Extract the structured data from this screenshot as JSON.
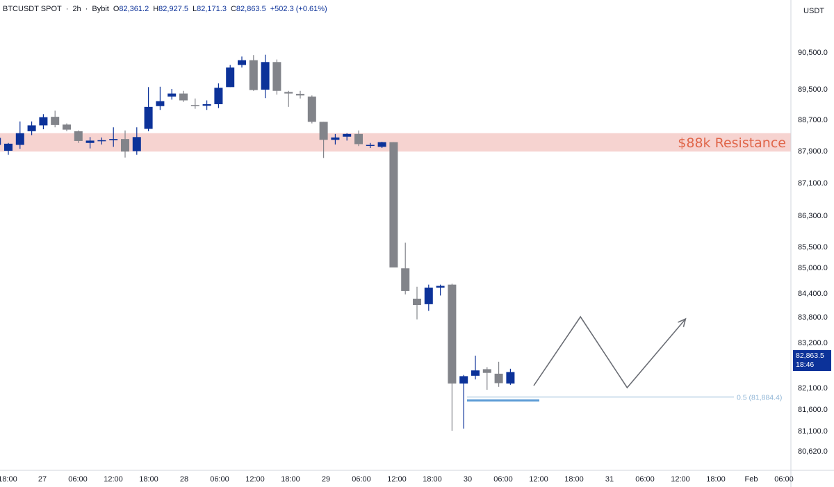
{
  "header": {
    "symbol": "BTCUSDT SPOT",
    "interval": "2h",
    "exchange": "Bybit",
    "open_label": "O",
    "open": "82,361.2",
    "high_label": "H",
    "high": "82,927.5",
    "low_label": "L",
    "low": "82,171.3",
    "close_label": "C",
    "close": "82,863.5",
    "change": "+502.3 (+0.61%)"
  },
  "currency": "USDT",
  "last_price": {
    "value": "82,863.5",
    "countdown": "18:46"
  },
  "chart_data": {
    "type": "candlestick",
    "title": "BTCUSDT SPOT · 2h · Bybit",
    "y_ticks": [
      90500,
      89500,
      88700,
      87900,
      87100,
      86300,
      85500,
      85000,
      84400,
      83800,
      83200,
      82100,
      81600,
      81100,
      80620
    ],
    "y_tick_labels": [
      "90,500.0",
      "89,500.0",
      "88,700.0",
      "87,900.0",
      "87,100.0",
      "86,300.0",
      "85,500.0",
      "85,000.0",
      "84,400.0",
      "83,800.0",
      "83,200.0",
      "82,100.0",
      "81,600.0",
      "81,100.0",
      "80,620.0"
    ],
    "x_labels": [
      "18:00",
      "27",
      "06:00",
      "12:00",
      "18:00",
      "28",
      "06:00",
      "12:00",
      "18:00",
      "29",
      "06:00",
      "12:00",
      "18:00",
      "30",
      "06:00",
      "12:00",
      "18:00",
      "31",
      "06:00",
      "12:00",
      "18:00",
      "Feb",
      "06:00"
    ],
    "up_color": "#0c3299",
    "down_color": "#82848a",
    "candles": [
      {
        "t": "26 16:00",
        "o": 88050,
        "h": 88520,
        "l": 87900,
        "c": 88230
      },
      {
        "t": "26 18:00",
        "o": 87900,
        "h": 88100,
        "l": 87800,
        "c": 88080
      },
      {
        "t": "26 20:00",
        "o": 88050,
        "h": 88650,
        "l": 87950,
        "c": 88350
      },
      {
        "t": "26 22:00",
        "o": 88400,
        "h": 88650,
        "l": 88300,
        "c": 88550
      },
      {
        "t": "27 00:00",
        "o": 88550,
        "h": 88840,
        "l": 88450,
        "c": 88760
      },
      {
        "t": "27 02:00",
        "o": 88770,
        "h": 88930,
        "l": 88500,
        "c": 88560
      },
      {
        "t": "27 04:00",
        "o": 88570,
        "h": 88600,
        "l": 88400,
        "c": 88440
      },
      {
        "t": "27 06:00",
        "o": 88400,
        "h": 88420,
        "l": 88100,
        "c": 88150
      },
      {
        "t": "27 08:00",
        "o": 88100,
        "h": 88250,
        "l": 87960,
        "c": 88160
      },
      {
        "t": "27 10:00",
        "o": 88160,
        "h": 88240,
        "l": 88060,
        "c": 88170
      },
      {
        "t": "27 12:00",
        "o": 88170,
        "h": 88500,
        "l": 88000,
        "c": 88200
      },
      {
        "t": "27 14:00",
        "o": 88200,
        "h": 88420,
        "l": 87730,
        "c": 87880
      },
      {
        "t": "27 16:00",
        "o": 87890,
        "h": 88500,
        "l": 87800,
        "c": 88250
      },
      {
        "t": "27 18:00",
        "o": 88460,
        "h": 89550,
        "l": 88400,
        "c": 89030
      },
      {
        "t": "27 20:00",
        "o": 89050,
        "h": 89560,
        "l": 88950,
        "c": 89180
      },
      {
        "t": "27 22:00",
        "o": 89300,
        "h": 89500,
        "l": 89220,
        "c": 89380
      },
      {
        "t": "28 00:00",
        "o": 89380,
        "h": 89450,
        "l": 89160,
        "c": 89200
      },
      {
        "t": "28 02:00",
        "o": 89080,
        "h": 89250,
        "l": 88980,
        "c": 89060
      },
      {
        "t": "28 04:00",
        "o": 89060,
        "h": 89200,
        "l": 88950,
        "c": 89100
      },
      {
        "t": "28 06:00",
        "o": 89100,
        "h": 89650,
        "l": 89000,
        "c": 89530
      },
      {
        "t": "28 08:00",
        "o": 89550,
        "h": 90150,
        "l": 89550,
        "c": 90080
      },
      {
        "t": "28 10:00",
        "o": 90150,
        "h": 90380,
        "l": 90080,
        "c": 90280
      },
      {
        "t": "28 12:00",
        "o": 90280,
        "h": 90420,
        "l": 89450,
        "c": 89470
      },
      {
        "t": "28 14:00",
        "o": 89480,
        "h": 90430,
        "l": 89260,
        "c": 90230
      },
      {
        "t": "28 16:00",
        "o": 90230,
        "h": 90300,
        "l": 89350,
        "c": 89450
      },
      {
        "t": "28 18:00",
        "o": 89420,
        "h": 89450,
        "l": 89030,
        "c": 89380
      },
      {
        "t": "28 20:00",
        "o": 89370,
        "h": 89450,
        "l": 89250,
        "c": 89330
      },
      {
        "t": "28 22:00",
        "o": 89300,
        "h": 89330,
        "l": 88600,
        "c": 88640
      },
      {
        "t": "29 00:00",
        "o": 88640,
        "h": 88640,
        "l": 87720,
        "c": 88180
      },
      {
        "t": "29 02:00",
        "o": 88180,
        "h": 88330,
        "l": 88060,
        "c": 88240
      },
      {
        "t": "29 04:00",
        "o": 88260,
        "h": 88350,
        "l": 88160,
        "c": 88330
      },
      {
        "t": "29 06:00",
        "o": 88330,
        "h": 88420,
        "l": 88020,
        "c": 88070
      },
      {
        "t": "29 08:00",
        "o": 88030,
        "h": 88100,
        "l": 87970,
        "c": 88050
      },
      {
        "t": "29 10:00",
        "o": 88000,
        "h": 88130,
        "l": 87970,
        "c": 88120
      },
      {
        "t": "29 12:00",
        "o": 88120,
        "h": 88120,
        "l": 85000,
        "c": 85000
      },
      {
        "t": "29 14:00",
        "o": 84980,
        "h": 85600,
        "l": 84370,
        "c": 84450
      },
      {
        "t": "29 16:00",
        "o": 84260,
        "h": 84550,
        "l": 83740,
        "c": 84100
      },
      {
        "t": "29 18:00",
        "o": 84120,
        "h": 84600,
        "l": 83950,
        "c": 84530
      },
      {
        "t": "29 20:00",
        "o": 84530,
        "h": 84600,
        "l": 84340,
        "c": 84570
      },
      {
        "t": "29 22:00",
        "o": 84600,
        "h": 84620,
        "l": 81100,
        "c": 82200
      },
      {
        "t": "30 00:00",
        "o": 82200,
        "h": 82410,
        "l": 81150,
        "c": 82380
      },
      {
        "t": "30 02:00",
        "o": 82390,
        "h": 82880,
        "l": 82300,
        "c": 82520
      },
      {
        "t": "30 04:00",
        "o": 82550,
        "h": 82600,
        "l": 82050,
        "c": 82460
      },
      {
        "t": "30 06:00",
        "o": 82440,
        "h": 82730,
        "l": 82120,
        "c": 82210
      },
      {
        "t": "30 08:00",
        "o": 82200,
        "h": 82560,
        "l": 82170,
        "c": 82480
      }
    ],
    "resistance_zone": {
      "label": "$88k Resistance",
      "from": 87880,
      "to": 88350
    },
    "fib_level": {
      "label": "0.5 (81,884.4)",
      "value": 81884.4
    },
    "projection_path": [
      {
        "t": "30 12:00",
        "v": 82150
      },
      {
        "t": "30 20:00",
        "v": 83800
      },
      {
        "t": "31 04:00",
        "v": 82100
      },
      {
        "t": "31 14:00",
        "v": 83750
      }
    ],
    "grid": false,
    "legend": "none"
  }
}
